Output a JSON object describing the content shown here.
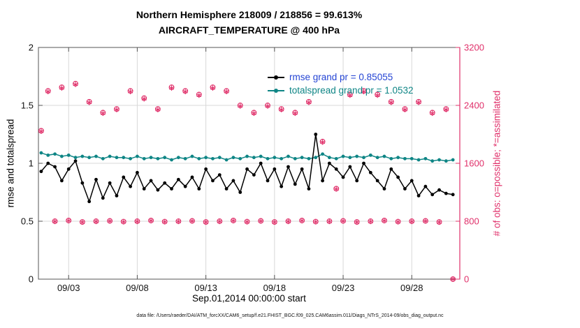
{
  "chart_data": {
    "type": "line",
    "title": "Northern Hemisphere 218009 / 218856 = 99.613%",
    "subtitle": "AIRCRAFT_TEMPERATURE @ 400 hPa",
    "xlabel": "Sep.01,2014 00:00:00 start",
    "ylabel_left": "rmse and totalspread",
    "ylabel_right": "# of obs: o=possible; *=assimilated",
    "footer": "data file: /Users/raeder/DAI/ATM_forcXX/CAM6_setup/f.e21.FHIST_BGC.f09_025.CAM6assim.011/Diags_NTrS_2014-09/obs_diag_output.nc",
    "xlim": [
      -0.2,
      30.5
    ],
    "ylim_left": [
      0,
      2
    ],
    "ylim_right": [
      0,
      3200
    ],
    "grid": true,
    "xticks": [
      {
        "v": 2,
        "label": "09/03"
      },
      {
        "v": 7,
        "label": "09/08"
      },
      {
        "v": 12,
        "label": "09/13"
      },
      {
        "v": 17,
        "label": "09/18"
      },
      {
        "v": 22,
        "label": "09/23"
      },
      {
        "v": 27,
        "label": "09/28"
      }
    ],
    "yticks_left": [
      {
        "v": 0,
        "label": "0"
      },
      {
        "v": 0.5,
        "label": "0.5"
      },
      {
        "v": 1,
        "label": "1"
      },
      {
        "v": 1.5,
        "label": "1.5"
      },
      {
        "v": 2,
        "label": "2"
      }
    ],
    "yticks_right": [
      {
        "v": 0,
        "label": "0"
      },
      {
        "v": 800,
        "label": "800"
      },
      {
        "v": 1600,
        "label": "1600"
      },
      {
        "v": 2400,
        "label": "2400"
      },
      {
        "v": 3200,
        "label": "3200"
      }
    ],
    "x_start": 0,
    "x_step": 0.5,
    "series": [
      {
        "name": "rmse",
        "grand_mean": 0.85055,
        "color": "#000000",
        "values": [
          0.93,
          1.0,
          0.97,
          0.85,
          0.95,
          1.02,
          0.83,
          0.67,
          0.86,
          0.7,
          0.83,
          0.72,
          0.88,
          0.8,
          0.92,
          0.78,
          0.85,
          0.77,
          0.83,
          0.78,
          0.86,
          0.8,
          0.88,
          0.78,
          0.95,
          0.85,
          0.9,
          0.78,
          0.85,
          0.75,
          0.95,
          0.9,
          1.0,
          0.85,
          0.95,
          0.8,
          0.97,
          0.82,
          0.95,
          0.78,
          1.25,
          0.85,
          1.0,
          0.95,
          0.88,
          0.97,
          0.85,
          1.0,
          0.92,
          0.85,
          0.78,
          0.95,
          0.88,
          0.78,
          0.85,
          0.72,
          0.8,
          0.73,
          0.77,
          0.74,
          0.73
        ]
      },
      {
        "name": "totalspread",
        "grand_mean": 1.0532,
        "color": "#0e8585",
        "values": [
          1.09,
          1.07,
          1.08,
          1.06,
          1.07,
          1.05,
          1.06,
          1.05,
          1.06,
          1.04,
          1.06,
          1.05,
          1.05,
          1.04,
          1.06,
          1.04,
          1.05,
          1.04,
          1.05,
          1.03,
          1.05,
          1.04,
          1.06,
          1.04,
          1.05,
          1.04,
          1.05,
          1.03,
          1.05,
          1.04,
          1.06,
          1.05,
          1.06,
          1.04,
          1.05,
          1.04,
          1.06,
          1.04,
          1.05,
          1.04,
          1.05,
          1.08,
          1.05,
          1.04,
          1.06,
          1.05,
          1.06,
          1.05,
          1.07,
          1.05,
          1.06,
          1.04,
          1.05,
          1.04,
          1.04,
          1.03,
          1.04,
          1.02,
          1.03,
          1.02,
          1.03
        ]
      }
    ],
    "obs": {
      "color": "#e0306a",
      "possible_marker": "o",
      "assimilated_marker": "*",
      "assimilated_ratio": 0.99613,
      "possible": [
        2050,
        2600,
        800,
        2650,
        810,
        2700,
        790,
        2450,
        800,
        2300,
        805,
        2350,
        795,
        2600,
        800,
        2500,
        810,
        2350,
        795,
        2650,
        800,
        2600,
        805,
        2550,
        790,
        2650,
        800,
        2600,
        810,
        2400,
        795,
        2300,
        805,
        2400,
        790,
        2350,
        800,
        2300,
        810,
        2450,
        795,
        1900,
        800,
        1250,
        805,
        2550,
        790,
        2600,
        800,
        2550,
        810,
        2450,
        795,
        2350,
        800,
        2450,
        805,
        2300,
        790,
        2350,
        0
      ]
    },
    "legend": [
      {
        "label": "rmse grand pr = 0.85055",
        "line_color": "#000000",
        "text_color": "#2444d4"
      },
      {
        "label": "totalspread grand pr = 1.0532",
        "line_color": "#0e8585",
        "text_color": "#0e8585"
      }
    ],
    "colors": {
      "grid": "#d8d8d8",
      "box": "#555555",
      "tick_text": "#111111"
    }
  }
}
